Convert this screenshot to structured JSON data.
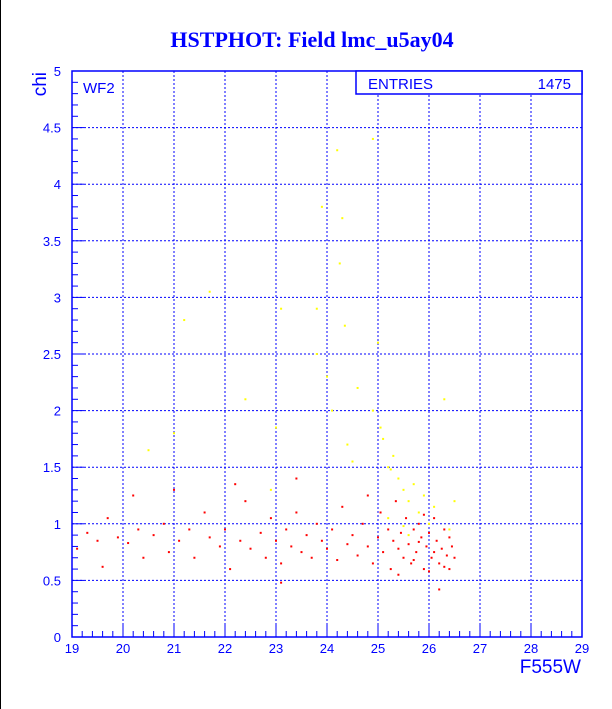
{
  "colors": {
    "axis": "#0000ff",
    "primary_points": "#ff0000",
    "secondary_points": "#ffff00",
    "background": "#ffffff"
  },
  "chart_data": {
    "type": "scatter",
    "title": "HSTPHOT: Field lmc_u5ay04",
    "xlabel": "F555W",
    "ylabel": "chi",
    "xlim": [
      19,
      29
    ],
    "ylim": [
      0,
      5
    ],
    "xticks": [
      "19",
      "20",
      "21",
      "22",
      "23",
      "24",
      "25",
      "26",
      "27",
      "28",
      "29"
    ],
    "yticks": [
      "0",
      "0.5",
      "1",
      "1.5",
      "2",
      "2.5",
      "3",
      "3.5",
      "4",
      "4.5",
      "5"
    ],
    "grid": true,
    "annotation": "WF2",
    "stats_box": {
      "label": "ENTRIES",
      "value": "1475",
      "placement": "top-right"
    },
    "series": [
      {
        "color": "#ff0000",
        "points": [
          [
            19.1,
            0.78
          ],
          [
            19.3,
            0.92
          ],
          [
            19.5,
            0.85
          ],
          [
            19.6,
            0.62
          ],
          [
            19.7,
            1.05
          ],
          [
            19.9,
            0.88
          ],
          [
            20.1,
            0.83
          ],
          [
            20.3,
            0.95
          ],
          [
            20.4,
            0.7
          ],
          [
            20.6,
            0.9
          ],
          [
            20.8,
            1.0
          ],
          [
            20.9,
            0.75
          ],
          [
            21.0,
            1.3
          ],
          [
            21.1,
            0.85
          ],
          [
            21.3,
            0.95
          ],
          [
            21.4,
            0.7
          ],
          [
            21.6,
            1.1
          ],
          [
            21.7,
            0.88
          ],
          [
            21.9,
            0.8
          ],
          [
            22.0,
            0.95
          ],
          [
            22.1,
            0.6
          ],
          [
            22.3,
            0.85
          ],
          [
            22.4,
            1.2
          ],
          [
            22.5,
            0.78
          ],
          [
            22.7,
            0.92
          ],
          [
            22.8,
            0.7
          ],
          [
            22.9,
            1.05
          ],
          [
            23.0,
            0.85
          ],
          [
            23.1,
            0.65
          ],
          [
            23.2,
            0.95
          ],
          [
            23.3,
            0.8
          ],
          [
            23.4,
            1.1
          ],
          [
            23.5,
            0.75
          ],
          [
            23.6,
            0.9
          ],
          [
            23.7,
            0.7
          ],
          [
            23.8,
            1.0
          ],
          [
            23.9,
            0.85
          ],
          [
            24.0,
            0.78
          ],
          [
            24.1,
            0.95
          ],
          [
            24.2,
            0.68
          ],
          [
            24.3,
            1.15
          ],
          [
            24.4,
            0.82
          ],
          [
            24.5,
            0.9
          ],
          [
            24.6,
            0.72
          ],
          [
            24.7,
            1.0
          ],
          [
            24.8,
            0.8
          ],
          [
            24.9,
            0.65
          ],
          [
            25.0,
            0.88
          ],
          [
            25.05,
            1.1
          ],
          [
            25.1,
            0.75
          ],
          [
            25.2,
            0.95
          ],
          [
            25.25,
            0.6
          ],
          [
            25.3,
            0.85
          ],
          [
            25.35,
            1.2
          ],
          [
            25.4,
            0.78
          ],
          [
            25.45,
            0.92
          ],
          [
            25.5,
            0.7
          ],
          [
            25.55,
            1.05
          ],
          [
            25.6,
            0.82
          ],
          [
            25.65,
            0.65
          ],
          [
            25.7,
            0.95
          ],
          [
            25.75,
            0.75
          ],
          [
            25.8,
            1.0
          ],
          [
            25.85,
            0.88
          ],
          [
            25.9,
            0.6
          ],
          [
            25.95,
            0.8
          ],
          [
            26.0,
            0.92
          ],
          [
            26.05,
            0.7
          ],
          [
            26.1,
            1.05
          ],
          [
            26.15,
            0.85
          ],
          [
            26.2,
            0.65
          ],
          [
            26.25,
            0.78
          ],
          [
            26.3,
            0.95
          ],
          [
            26.35,
            0.72
          ],
          [
            26.4,
            0.88
          ],
          [
            26.45,
            0.8
          ],
          [
            26.5,
            0.7
          ],
          [
            26.2,
            0.42
          ],
          [
            23.1,
            0.48
          ],
          [
            25.9,
            1.08
          ],
          [
            26.0,
            0.58
          ],
          [
            25.7,
            0.68
          ],
          [
            26.3,
            0.62
          ],
          [
            25.4,
            0.55
          ],
          [
            24.8,
            1.25
          ],
          [
            22.2,
            1.35
          ],
          [
            20.2,
            1.25
          ],
          [
            23.4,
            1.4
          ],
          [
            26.1,
            0.75
          ],
          [
            25.8,
            0.84
          ],
          [
            26.4,
            0.6
          ]
        ]
      },
      {
        "color": "#ffff00",
        "points": [
          [
            21.2,
            2.8
          ],
          [
            21.7,
            3.05
          ],
          [
            22.4,
            2.1
          ],
          [
            23.1,
            2.9
          ],
          [
            23.8,
            2.9
          ],
          [
            23.9,
            3.8
          ],
          [
            24.2,
            4.3
          ],
          [
            24.25,
            3.3
          ],
          [
            24.3,
            3.7
          ],
          [
            24.35,
            2.75
          ],
          [
            23.8,
            2.5
          ],
          [
            24.0,
            2.3
          ],
          [
            24.1,
            2.0
          ],
          [
            24.6,
            2.2
          ],
          [
            24.9,
            2.0
          ],
          [
            25.0,
            2.6
          ],
          [
            25.05,
            1.85
          ],
          [
            25.1,
            1.75
          ],
          [
            25.2,
            1.5
          ],
          [
            25.3,
            1.6
          ],
          [
            25.4,
            1.4
          ],
          [
            25.5,
            1.3
          ],
          [
            25.6,
            1.2
          ],
          [
            25.7,
            1.35
          ],
          [
            25.8,
            1.1
          ],
          [
            25.9,
            1.25
          ],
          [
            26.0,
            1.0
          ],
          [
            26.1,
            1.15
          ],
          [
            26.3,
            2.1
          ],
          [
            26.4,
            0.95
          ],
          [
            20.5,
            1.65
          ],
          [
            21.0,
            1.8
          ],
          [
            23.0,
            1.85
          ],
          [
            24.5,
            1.55
          ],
          [
            25.2,
            1.05
          ],
          [
            25.5,
            0.98
          ],
          [
            26.5,
            1.2
          ],
          [
            25.25,
            1.48
          ],
          [
            24.9,
            4.4
          ],
          [
            22.9,
            1.3
          ],
          [
            25.6,
            0.9
          ],
          [
            24.4,
            1.7
          ]
        ]
      }
    ]
  }
}
